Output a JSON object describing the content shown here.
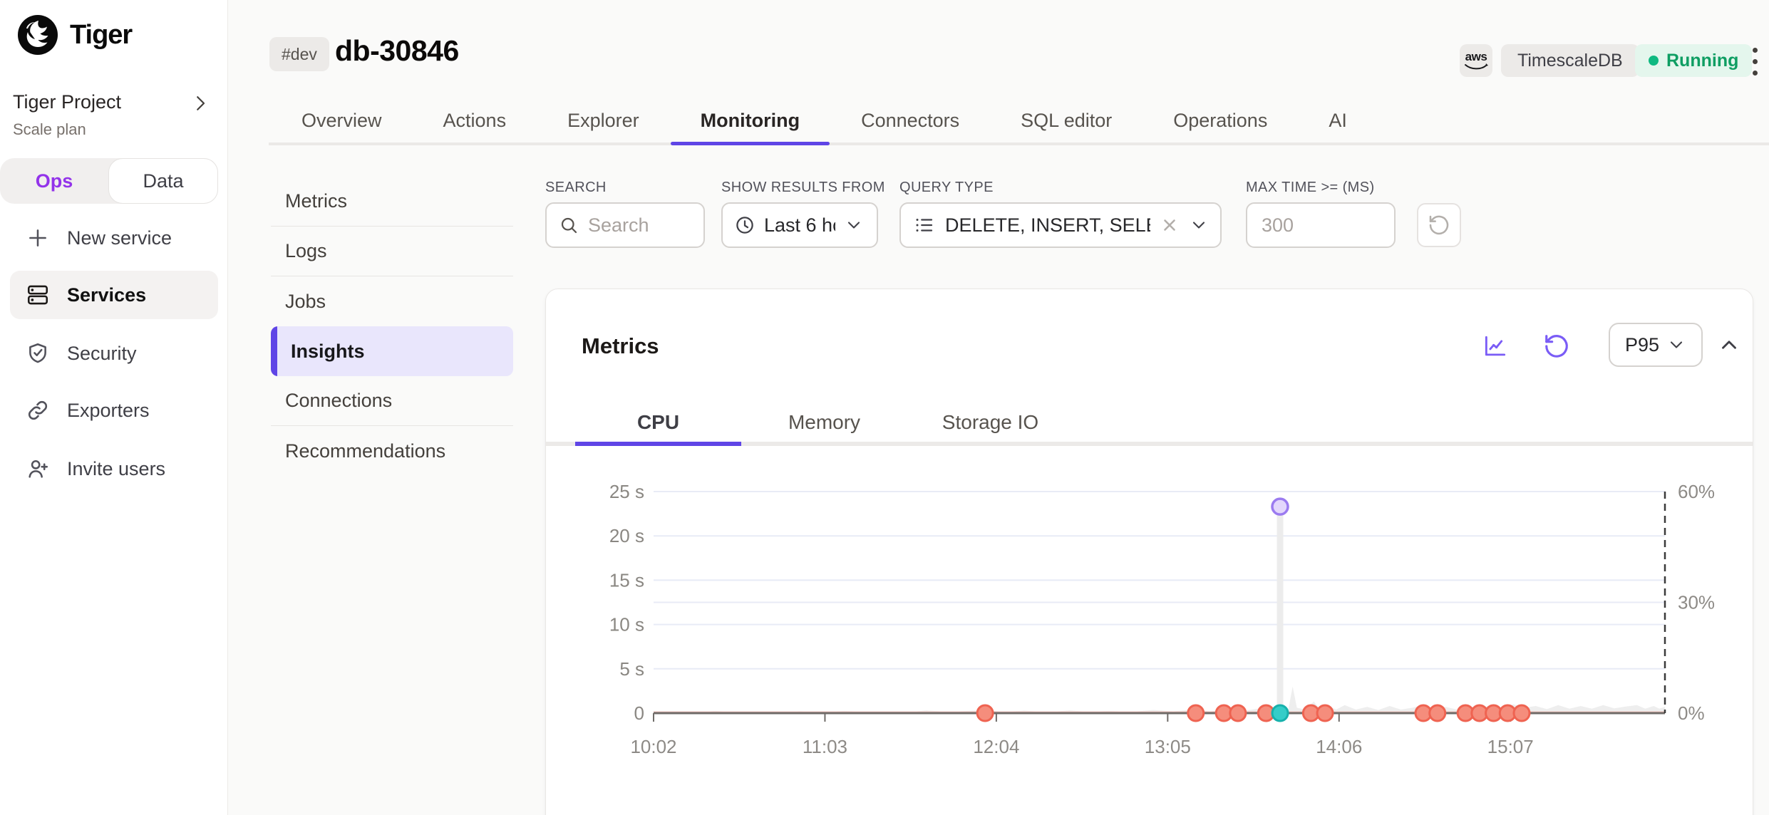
{
  "brand": {
    "name": "Tiger"
  },
  "project": {
    "name": "Tiger Project",
    "plan": "Scale plan"
  },
  "mode_toggle": {
    "options": [
      {
        "label": "Ops",
        "active": true
      },
      {
        "label": "Data",
        "active": false
      }
    ]
  },
  "sidebar_nav": [
    {
      "label": "New service",
      "icon": "plus-icon",
      "active": false
    },
    {
      "label": "Services",
      "icon": "server-icon",
      "active": true
    },
    {
      "label": "Security",
      "icon": "shield-check-icon",
      "active": false
    },
    {
      "label": "Exporters",
      "icon": "link-icon",
      "active": false
    },
    {
      "label": "Invite users",
      "icon": "user-plus-icon",
      "active": false
    }
  ],
  "header": {
    "env_badge": "#dev",
    "title": "db-30846",
    "provider_label": "aws",
    "db_badge": "TimescaleDB",
    "status": {
      "label": "Running",
      "color": "#0fb981"
    }
  },
  "tabs": [
    {
      "label": "Overview",
      "active": false
    },
    {
      "label": "Actions",
      "active": false
    },
    {
      "label": "Explorer",
      "active": false
    },
    {
      "label": "Monitoring",
      "active": true
    },
    {
      "label": "Connectors",
      "active": false
    },
    {
      "label": "SQL editor",
      "active": false
    },
    {
      "label": "Operations",
      "active": false
    },
    {
      "label": "AI",
      "active": false
    }
  ],
  "subnav": [
    {
      "label": "Metrics",
      "active": false
    },
    {
      "label": "Logs",
      "active": false
    },
    {
      "label": "Jobs",
      "active": false
    },
    {
      "label": "Insights",
      "active": true
    },
    {
      "label": "Connections",
      "active": false
    },
    {
      "label": "Recommendations",
      "active": false
    }
  ],
  "filters": {
    "search": {
      "label": "SEARCH",
      "placeholder": "Search"
    },
    "time_range": {
      "label": "SHOW RESULTS FROM",
      "value": "Last 6 ho"
    },
    "query_type": {
      "label": "QUERY TYPE",
      "value": "DELETE, INSERT, SELEC"
    },
    "max_time": {
      "label": "MAX TIME >= (MS)",
      "placeholder": "300"
    }
  },
  "metrics_card": {
    "title": "Metrics",
    "percentile": "P95",
    "tabs": [
      {
        "label": "CPU",
        "active": true
      },
      {
        "label": "Memory",
        "active": false
      },
      {
        "label": "Storage IO",
        "active": false
      }
    ]
  },
  "colors": {
    "accent_purple": "#5f45e6",
    "icon_purple": "#7a5cf6",
    "status_green": "#0fb981",
    "point_red_fill": "#f58d7c",
    "point_red_stroke": "#ef6351",
    "point_teal_fill": "#35cdc8",
    "point_teal_stroke": "#17b1ac",
    "point_purple_fill": "#e3d7fc",
    "point_purple_stroke": "#9b7bf0"
  },
  "chart_data": {
    "type": "scatter",
    "x_axis": {
      "labels": [
        "10:02",
        "11:03",
        "12:04",
        "13:05",
        "14:06",
        "15:07"
      ],
      "label_minutes": [
        0,
        61,
        122,
        183,
        244,
        305
      ],
      "domain_minutes": [
        0,
        360
      ],
      "now_marker_minutes": 360
    },
    "y_left": {
      "ticks": [
        "25 s",
        "20 s",
        "15 s",
        "10 s",
        "5 s",
        "0"
      ],
      "tick_values": [
        25,
        20,
        15,
        10,
        5,
        0
      ],
      "unit": "seconds",
      "max": 25
    },
    "y_right": {
      "ticks": [
        "60%",
        "30%",
        "0%"
      ],
      "tick_values": [
        60,
        30,
        0
      ],
      "unit": "percent",
      "max": 60
    },
    "grid": true,
    "legend": false,
    "series": [
      {
        "name": "cpu-area-gray",
        "type": "area",
        "color": "#ececec",
        "points": [
          [
            0,
            0.12
          ],
          [
            8,
            0.2
          ],
          [
            15,
            0.1
          ],
          [
            22,
            0.25
          ],
          [
            30,
            0.12
          ],
          [
            38,
            0.2
          ],
          [
            45,
            0.1
          ],
          [
            52,
            0.22
          ],
          [
            60,
            0.12
          ],
          [
            68,
            0.25
          ],
          [
            75,
            0.15
          ],
          [
            82,
            0.2
          ],
          [
            90,
            0.1
          ],
          [
            97,
            0.3
          ],
          [
            105,
            0.15
          ],
          [
            112,
            0.25
          ],
          [
            118,
            0.35
          ],
          [
            125,
            0.15
          ],
          [
            132,
            0.28
          ],
          [
            140,
            0.12
          ],
          [
            148,
            0.3
          ],
          [
            155,
            0.15
          ],
          [
            162,
            0.25
          ],
          [
            170,
            0.15
          ],
          [
            178,
            0.35
          ],
          [
            185,
            0.2
          ],
          [
            192,
            0.4
          ],
          [
            198,
            0.2
          ],
          [
            205,
            0.45
          ],
          [
            210,
            0.25
          ],
          [
            215,
            0.5
          ],
          [
            219,
            0.3
          ],
          [
            223,
            0.6
          ],
          [
            226,
            0.5
          ],
          [
            227.5,
            3.0
          ],
          [
            229,
            0.6
          ],
          [
            232,
            0.4
          ],
          [
            235,
            1.3
          ],
          [
            237,
            0.5
          ],
          [
            240,
            0.8
          ],
          [
            243,
            0.4
          ],
          [
            246,
            0.9
          ],
          [
            250,
            0.4
          ],
          [
            254,
            0.7
          ],
          [
            258,
            0.35
          ],
          [
            262,
            0.8
          ],
          [
            266,
            0.4
          ],
          [
            270,
            0.6
          ],
          [
            274,
            0.9
          ],
          [
            278,
            0.5
          ],
          [
            282,
            0.7
          ],
          [
            286,
            0.4
          ],
          [
            290,
            0.8
          ],
          [
            294,
            0.5
          ],
          [
            298,
            0.9
          ],
          [
            302,
            0.5
          ],
          [
            306,
            1.0
          ],
          [
            310,
            0.6
          ],
          [
            314,
            0.8
          ],
          [
            318,
            0.45
          ],
          [
            322,
            0.9
          ],
          [
            326,
            0.5
          ],
          [
            330,
            0.8
          ],
          [
            334,
            0.5
          ],
          [
            338,
            0.9
          ],
          [
            342,
            0.55
          ],
          [
            346,
            0.75
          ],
          [
            350,
            0.9
          ],
          [
            353,
            0.5
          ],
          [
            356,
            0.8
          ],
          [
            358,
            0.5
          ],
          [
            360,
            0.7
          ]
        ]
      },
      {
        "name": "zero-line-red",
        "type": "line",
        "color": "#f3c6c0",
        "value_seconds": 0
      },
      {
        "name": "queries-red",
        "type": "scatter",
        "fill": "#f58d7c",
        "stroke": "#ef6351",
        "points_minutes": [
          118,
          193,
          203,
          208,
          218,
          234,
          239,
          274,
          279,
          289,
          294,
          299,
          304,
          309
        ],
        "value_seconds": 0
      },
      {
        "name": "selected-query-teal",
        "type": "scatter",
        "fill": "#35cdc8",
        "stroke": "#17b1ac",
        "points_minutes": [
          223
        ],
        "value_seconds": 0
      },
      {
        "name": "spike-purple",
        "type": "scatter",
        "fill": "#e3d7fc",
        "stroke": "#9b7bf0",
        "bar_color": "#ececec",
        "points": [
          {
            "minutes": 223,
            "seconds": 23.3
          }
        ]
      }
    ]
  }
}
